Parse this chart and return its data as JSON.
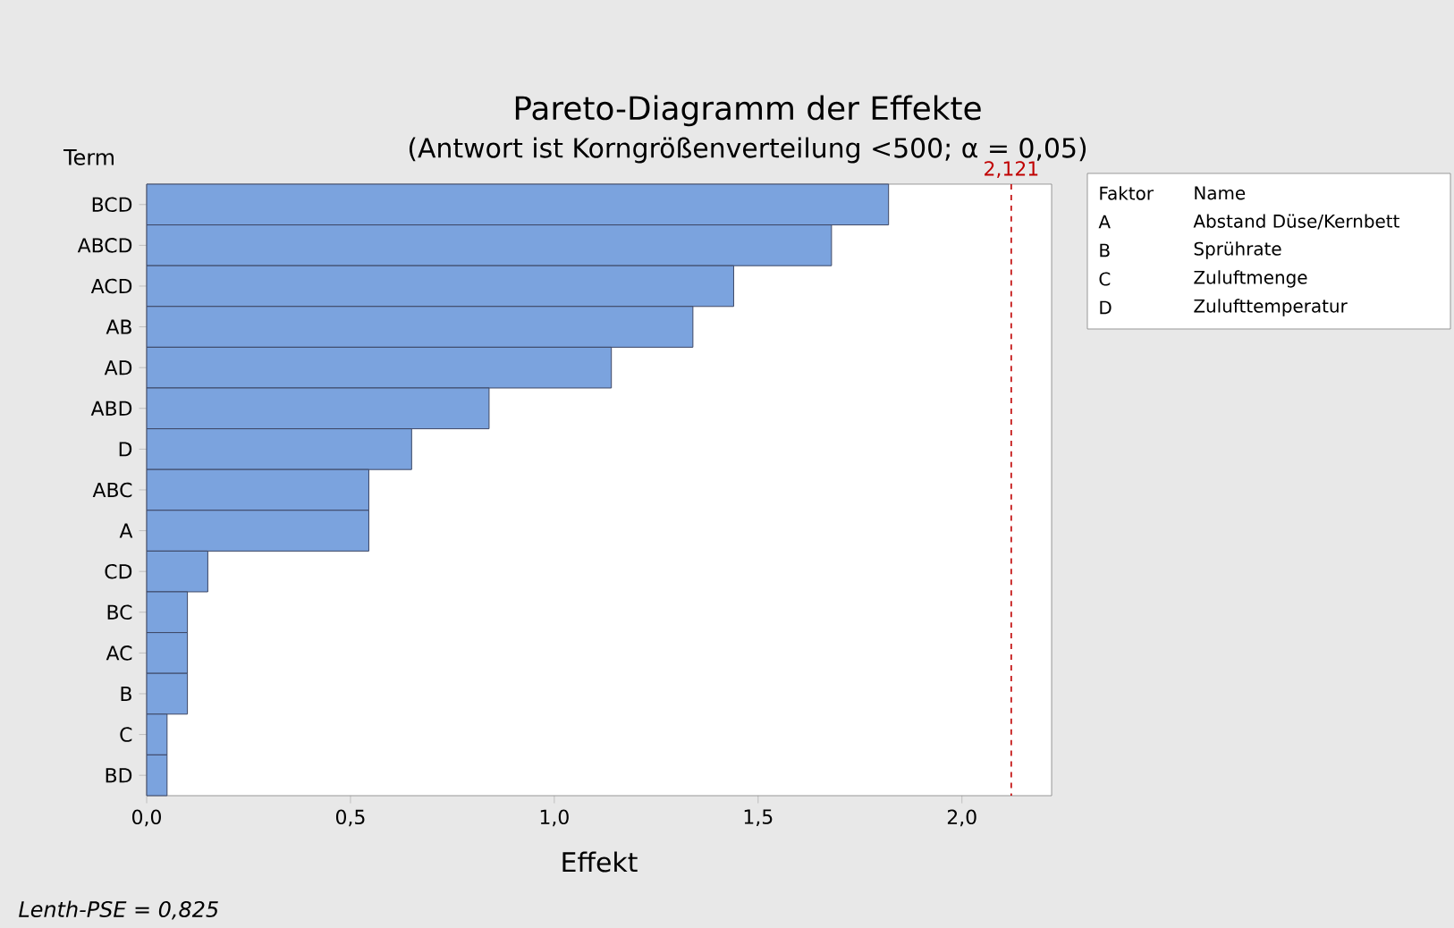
{
  "chart_data": {
    "type": "bar",
    "orientation": "horizontal",
    "title": "Pareto-Diagramm der Effekte",
    "subtitle": "(Antwort ist Korngrößenverteilung <500; α = 0,05)",
    "xlabel": "Effekt",
    "ylabel": "Term",
    "categories": [
      "BCD",
      "ABCD",
      "ACD",
      "AB",
      "AD",
      "ABD",
      "D",
      "ABC",
      "A",
      "CD",
      "BC",
      "AC",
      "B",
      "C",
      "BD"
    ],
    "values": [
      1.82,
      1.68,
      1.44,
      1.34,
      1.14,
      0.84,
      0.65,
      0.545,
      0.545,
      0.15,
      0.1,
      0.1,
      0.1,
      0.05,
      0.05
    ],
    "color": "#7ba3de",
    "xlim": [
      0,
      2.22
    ],
    "xticks": [
      {
        "value": 0,
        "label": "0,0"
      },
      {
        "value": 0.5,
        "label": "0,5"
      },
      {
        "value": 1,
        "label": "1,0"
      },
      {
        "value": 1.5,
        "label": "1,5"
      },
      {
        "value": 2,
        "label": "2,0"
      }
    ],
    "ref_lines": [
      {
        "axis": "x",
        "value": 2.121,
        "label": "2,121",
        "color": "#c00000",
        "line_style": "dashed"
      }
    ],
    "annotations": [
      "Faktor",
      "Name",
      "A",
      "Abstand Düse/Kernbett",
      "B",
      "Sprührate",
      "C",
      "Zuluftmenge",
      "D",
      "Zulufttemperatur",
      "Lenth-PSE = 0,825"
    ],
    "grid": false
  }
}
